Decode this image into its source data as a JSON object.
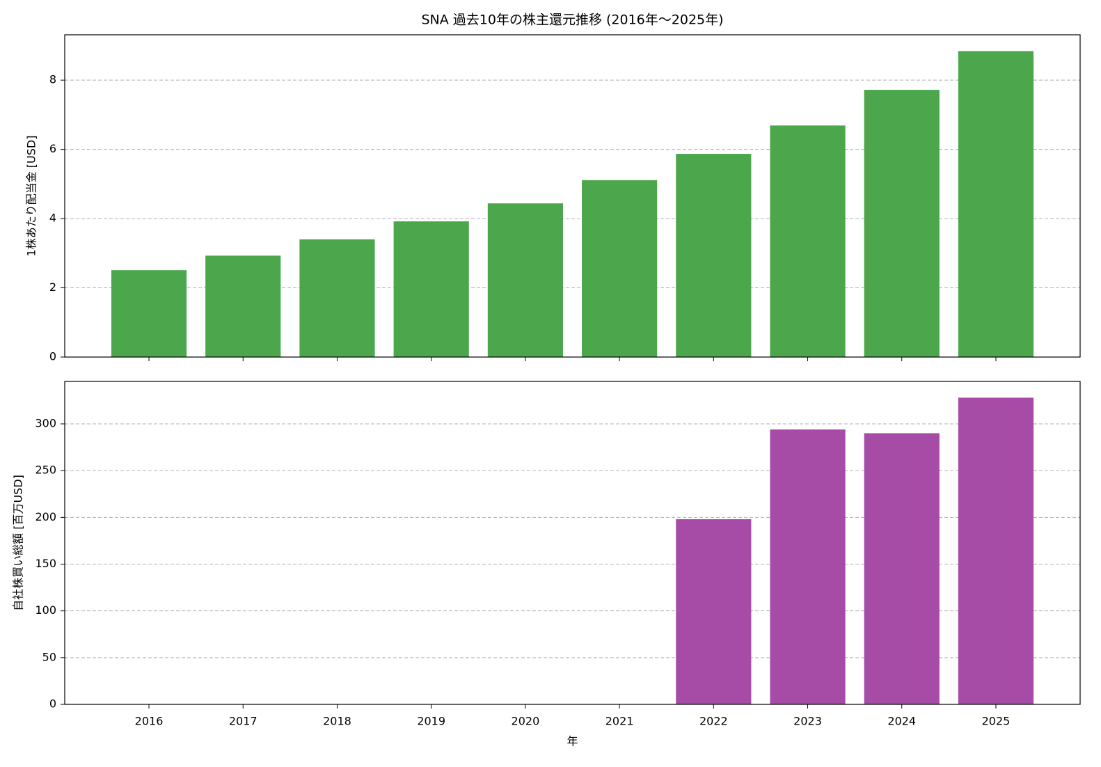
{
  "chart_data": [
    {
      "type": "bar",
      "title": "SNA 過去10年の株主還元推移 (2016年～2025年)",
      "ylabel": "1株あたり配当金 [USD]",
      "values": [
        2.51,
        2.93,
        3.4,
        3.92,
        4.44,
        5.11,
        5.87,
        6.69,
        7.72,
        8.84
      ],
      "color": "#4ca64c",
      "ylim": [
        0,
        9.31
      ],
      "yticks": [
        0,
        2,
        4,
        6,
        8
      ],
      "grid": true
    },
    {
      "type": "bar",
      "xlabel": "年",
      "ylabel": "自社株買い総額 [百万USD]",
      "categories": [
        "2016",
        "2017",
        "2018",
        "2019",
        "2020",
        "2021",
        "2022",
        "2023",
        "2024",
        "2025"
      ],
      "values": [
        0,
        0,
        0,
        0,
        0,
        0,
        198,
        294,
        290,
        328
      ],
      "color": "#a64ca6",
      "ylim": [
        0,
        345.4
      ],
      "yticks": [
        0,
        50,
        100,
        150,
        200,
        250,
        300
      ],
      "grid": true
    }
  ]
}
